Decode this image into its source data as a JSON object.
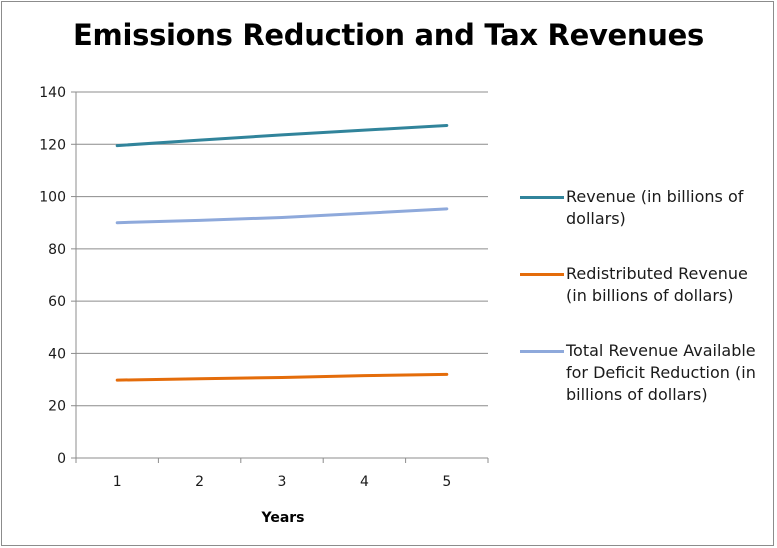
{
  "chart_data": {
    "type": "line",
    "title": "Emissions Reduction and Tax Revenues",
    "xlabel": "Years",
    "ylabel": "",
    "x": [
      1,
      2,
      3,
      4,
      5
    ],
    "ylim": [
      0,
      140
    ],
    "yticks": [
      0,
      20,
      40,
      60,
      80,
      100,
      120,
      140
    ],
    "grid": true,
    "legend_position": "right",
    "series": [
      {
        "name": "Revenue (in billions of dollars)",
        "values": [
          119.5,
          121.6,
          123.6,
          125.4,
          127.2
        ],
        "color": "#31849B"
      },
      {
        "name": "Redistributed Revenue (in billions of dollars)",
        "values": [
          29.8,
          30.3,
          30.8,
          31.5,
          32.0
        ],
        "color": "#E46C0A"
      },
      {
        "name": "Total Revenue Available for Deficit Reduction (in billions of dollars)",
        "values": [
          90.0,
          90.9,
          92.0,
          93.6,
          95.3
        ],
        "color": "#8EA9DB"
      }
    ]
  }
}
